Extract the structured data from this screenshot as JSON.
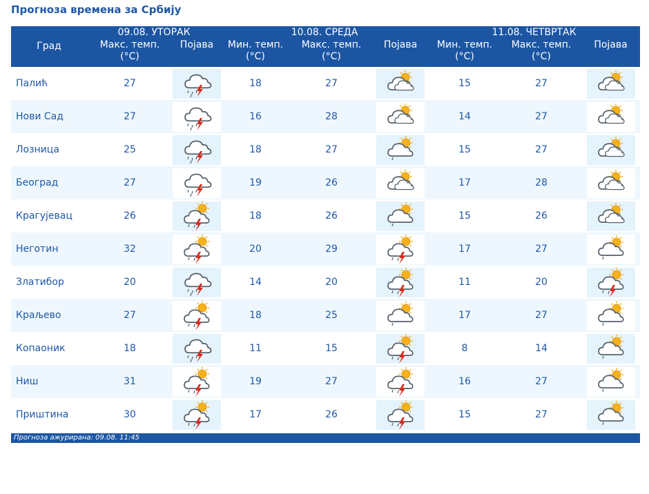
{
  "page_title": "Прогноза времена за Србију",
  "header": {
    "city_label": "Град",
    "days": [
      {
        "date": "09.08. УТОРАК"
      },
      {
        "date": "10.08. СРЕДА"
      },
      {
        "date": "11.08. ЧЕТВРТАК"
      }
    ],
    "min_temp": "Мин. темп.",
    "max_temp": "Макс. темп.",
    "unit": "(°C)",
    "phenomenon": "Појава"
  },
  "rows": [
    {
      "city": "Палић",
      "d1_max": "27",
      "d1_icon": "thunderstorm-cloud-icon",
      "d2_min": "18",
      "d2_max": "27",
      "d2_icon": "partly-cloudy-icon",
      "d3_min": "15",
      "d3_max": "27",
      "d3_icon": "partly-cloudy-icon"
    },
    {
      "city": "Нови Сад",
      "d1_max": "27",
      "d1_icon": "thunderstorm-cloud-icon",
      "d2_min": "16",
      "d2_max": "28",
      "d2_icon": "partly-cloudy-icon",
      "d3_min": "14",
      "d3_max": "27",
      "d3_icon": "partly-cloudy-icon"
    },
    {
      "city": "Лозница",
      "d1_max": "25",
      "d1_icon": "thunderstorm-cloud-icon",
      "d2_min": "18",
      "d2_max": "27",
      "d2_icon": "partly-cloudy-shower-icon",
      "d3_min": "15",
      "d3_max": "27",
      "d3_icon": "partly-cloudy-icon"
    },
    {
      "city": "Београд",
      "d1_max": "27",
      "d1_icon": "thunderstorm-cloud-icon",
      "d2_min": "19",
      "d2_max": "26",
      "d2_icon": "partly-cloudy-icon",
      "d3_min": "17",
      "d3_max": "28",
      "d3_icon": "partly-cloudy-icon"
    },
    {
      "city": "Крагујевац",
      "d1_max": "26",
      "d1_icon": "sun-thunderstorm-icon",
      "d2_min": "18",
      "d2_max": "26",
      "d2_icon": "partly-cloudy-shower-icon",
      "d3_min": "15",
      "d3_max": "26",
      "d3_icon": "partly-cloudy-icon"
    },
    {
      "city": "Неготин",
      "d1_max": "32",
      "d1_icon": "sun-thunderstorm-icon",
      "d2_min": "20",
      "d2_max": "29",
      "d2_icon": "sun-thunderstorm-icon",
      "d3_min": "17",
      "d3_max": "27",
      "d3_icon": "partly-cloudy-shower-icon"
    },
    {
      "city": "Златибор",
      "d1_max": "20",
      "d1_icon": "thunderstorm-cloud-icon",
      "d2_min": "14",
      "d2_max": "20",
      "d2_icon": "sun-thunderstorm-icon",
      "d3_min": "11",
      "d3_max": "20",
      "d3_icon": "sun-thunderstorm-icon"
    },
    {
      "city": "Краљево",
      "d1_max": "27",
      "d1_icon": "sun-thunderstorm-icon",
      "d2_min": "18",
      "d2_max": "25",
      "d2_icon": "partly-cloudy-shower-icon",
      "d3_min": "17",
      "d3_max": "27",
      "d3_icon": "partly-cloudy-shower-icon"
    },
    {
      "city": "Копаоник",
      "d1_max": "18",
      "d1_icon": "thunderstorm-cloud-icon",
      "d2_min": "11",
      "d2_max": "15",
      "d2_icon": "sun-thunderstorm-icon",
      "d3_min": "8",
      "d3_max": "14",
      "d3_icon": "partly-cloudy-shower-icon"
    },
    {
      "city": "Ниш",
      "d1_max": "31",
      "d1_icon": "sun-thunderstorm-icon",
      "d2_min": "19",
      "d2_max": "27",
      "d2_icon": "sun-thunderstorm-icon",
      "d3_min": "16",
      "d3_max": "27",
      "d3_icon": "partly-cloudy-shower-icon"
    },
    {
      "city": "Приштина",
      "d1_max": "30",
      "d1_icon": "sun-thunderstorm-icon",
      "d2_min": "17",
      "d2_max": "26",
      "d2_icon": "sun-thunderstorm-icon",
      "d3_min": "15",
      "d3_max": "27",
      "d3_icon": "partly-cloudy-shower-icon"
    }
  ],
  "footer": {
    "text": "Прогноза ажурирана:  09.08. 11:45"
  },
  "colors": {
    "header_bg": "#1c56a3",
    "text": "#1f57a6",
    "alt_row": "#eef7fd",
    "icon_bg": "#e4f3fc",
    "sun": "#f7b21b",
    "lightning": "#d92a1c"
  }
}
